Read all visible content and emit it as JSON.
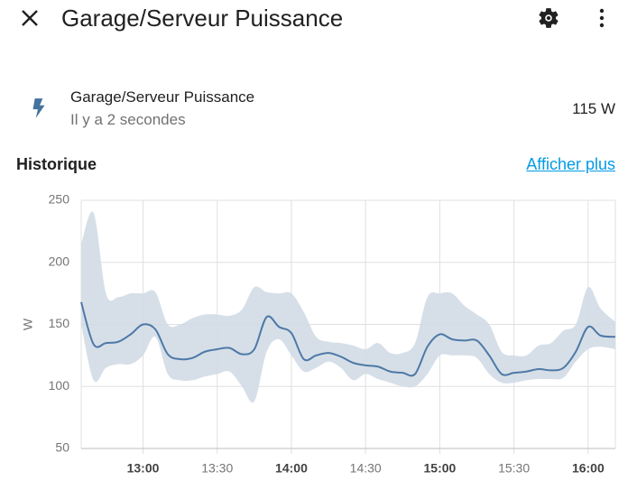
{
  "header": {
    "title": "Garage/Serveur Puissance"
  },
  "entity": {
    "name": "Garage/Serveur Puissance",
    "last_changed": "Il y a 2 secondes",
    "state": "115 W"
  },
  "history": {
    "title": "Historique",
    "link": "Afficher plus"
  },
  "chart_data": {
    "type": "line",
    "y_label": "W",
    "x": [
      755,
      760,
      765,
      770,
      775,
      780,
      785,
      790,
      795,
      800,
      805,
      810,
      815,
      820,
      825,
      830,
      835,
      840,
      845,
      850,
      855,
      860,
      865,
      870,
      875,
      880,
      885,
      890,
      895,
      900,
      905,
      910,
      915,
      920,
      925,
      930,
      935,
      940,
      945,
      950,
      955,
      960,
      965,
      971
    ],
    "series": [
      {
        "color": "#4e79a7",
        "values": [
          168,
          134,
          135,
          136,
          142,
          150,
          146,
          126,
          122,
          123,
          128,
          130,
          131,
          126,
          130,
          156,
          148,
          143,
          122,
          125,
          127,
          124,
          119,
          117,
          116,
          112,
          111,
          110,
          132,
          142,
          138,
          137,
          137,
          125,
          110,
          111,
          112,
          114,
          113,
          115,
          128,
          148,
          141,
          140
        ]
      }
    ],
    "band": {
      "color": "#d2dbe6",
      "high": [
        215,
        240,
        175,
        172,
        175,
        175,
        176,
        150,
        150,
        155,
        158,
        158,
        157,
        162,
        180,
        176,
        175,
        175,
        160,
        140,
        136,
        135,
        133,
        130,
        135,
        127,
        127,
        135,
        172,
        175,
        175,
        165,
        158,
        150,
        128,
        125,
        125,
        133,
        135,
        145,
        150,
        180,
        163,
        152
      ],
      "low": [
        150,
        105,
        115,
        118,
        118,
        125,
        140,
        110,
        105,
        105,
        108,
        110,
        112,
        100,
        88,
        128,
        138,
        125,
        112,
        115,
        120,
        115,
        105,
        110,
        106,
        103,
        100,
        100,
        110,
        125,
        125,
        125,
        123,
        110,
        103,
        103,
        105,
        106,
        106,
        107,
        120,
        130,
        132,
        130
      ]
    },
    "xlim": [
      755,
      971
    ],
    "xticks": [
      {
        "value": 780,
        "label": "13:00"
      },
      {
        "value": 810,
        "label": "13:30"
      },
      {
        "value": 840,
        "label": "14:00"
      },
      {
        "value": 870,
        "label": "14:30"
      },
      {
        "value": 900,
        "label": "15:00"
      },
      {
        "value": 930,
        "label": "15:30"
      },
      {
        "value": 960,
        "label": "16:00"
      }
    ],
    "ylim": [
      50,
      250
    ],
    "yticks": [
      50,
      100,
      150,
      200,
      250
    ],
    "grid": true
  }
}
